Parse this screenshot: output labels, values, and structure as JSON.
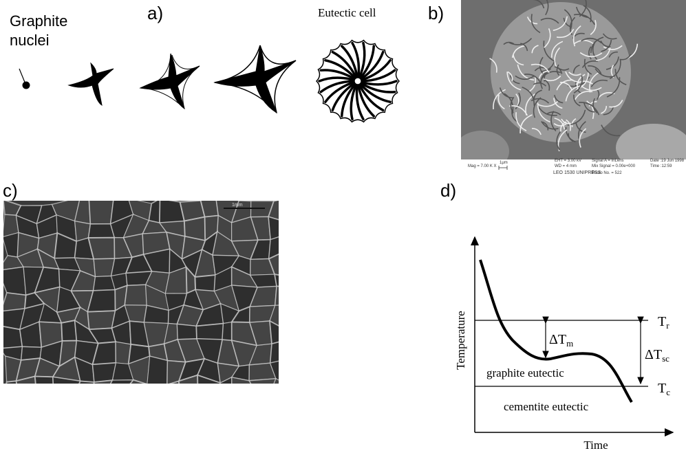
{
  "panel_a": {
    "label": "a)",
    "nuclei_label_lines": [
      "Graphite",
      "nuclei"
    ],
    "cell_label": "Eutectic cell"
  },
  "panel_b": {
    "label": "b)",
    "info": {
      "mag": "Mag = 7.00 K X",
      "scale": "1μm",
      "eht": "EHT = 3.00 kV",
      "wd": "WD =  4 mm",
      "signal": "Signal A = InLens",
      "mix": "Mix Signal = 0.00e+000",
      "photo": "Photo No. = 522",
      "instrument": "LEO 1530 UNIPRESS",
      "date": "Date :19 Jun 1998",
      "time": "Time :12:59"
    }
  },
  "panel_c": {
    "label": "c)",
    "scale": "1mm"
  },
  "panel_d": {
    "label": "d)",
    "y_axis": "Temperature",
    "x_axis": "Time",
    "tr": {
      "symbol": "T",
      "subscript": "r"
    },
    "tc": {
      "symbol": "T",
      "subscript": "c"
    },
    "dtm": {
      "symbol": "ΔT",
      "subscript": "m"
    },
    "dtsc": {
      "symbol": "ΔT",
      "subscript": "sc"
    },
    "graphite": "graphite eutectic",
    "cementite": "cementite eutectic"
  }
}
